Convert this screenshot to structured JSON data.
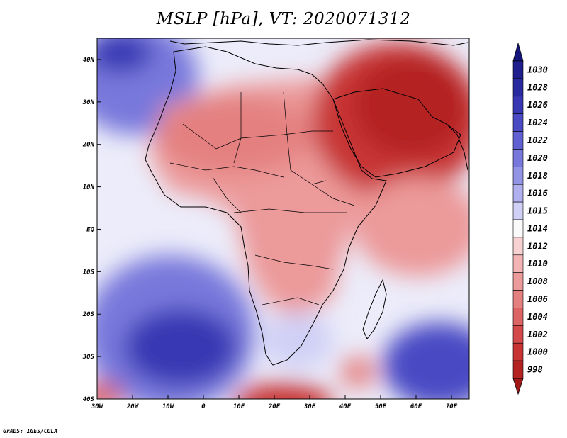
{
  "title": "MSLP [hPa], VT: 2020071312",
  "credit": "GrADS: IGES/COLA",
  "map": {
    "lon_range": [
      -30,
      75
    ],
    "lat_range": [
      -40,
      45
    ],
    "lon_ticks": [
      {
        "value": -30,
        "label": "30W"
      },
      {
        "value": -20,
        "label": "20W"
      },
      {
        "value": -10,
        "label": "10W"
      },
      {
        "value": 0,
        "label": "0"
      },
      {
        "value": 10,
        "label": "10E"
      },
      {
        "value": 20,
        "label": "20E"
      },
      {
        "value": 30,
        "label": "30E"
      },
      {
        "value": 40,
        "label": "40E"
      },
      {
        "value": 50,
        "label": "50E"
      },
      {
        "value": 60,
        "label": "60E"
      },
      {
        "value": 70,
        "label": "70E"
      }
    ],
    "lat_ticks": [
      {
        "value": 40,
        "label": "40N"
      },
      {
        "value": 30,
        "label": "30N"
      },
      {
        "value": 20,
        "label": "20N"
      },
      {
        "value": 10,
        "label": "10N"
      },
      {
        "value": 0,
        "label": "EQ"
      },
      {
        "value": -10,
        "label": "10S"
      },
      {
        "value": -20,
        "label": "20S"
      },
      {
        "value": -30,
        "label": "30S"
      },
      {
        "value": -40,
        "label": "40S"
      }
    ]
  },
  "colorbar": {
    "levels": [
      {
        "label": "1030",
        "color": "#1e1e8c"
      },
      {
        "label": "1028",
        "color": "#2a2aa0"
      },
      {
        "label": "1026",
        "color": "#3838b4"
      },
      {
        "label": "1024",
        "color": "#4a4ac4"
      },
      {
        "label": "1022",
        "color": "#6060d2"
      },
      {
        "label": "1020",
        "color": "#7878dc"
      },
      {
        "label": "1018",
        "color": "#9494e6"
      },
      {
        "label": "1016",
        "color": "#b0b0ee"
      },
      {
        "label": "1015",
        "color": "#d0d0f6"
      },
      {
        "label": "1014",
        "color": "#fafafa"
      },
      {
        "label": "1012",
        "color": "#f8d2d2"
      },
      {
        "label": "1010",
        "color": "#f2b4b4"
      },
      {
        "label": "1008",
        "color": "#ec9a9a"
      },
      {
        "label": "1006",
        "color": "#e48080"
      },
      {
        "label": "1004",
        "color": "#dc6464"
      },
      {
        "label": "1002",
        "color": "#d44a4a"
      },
      {
        "label": "1000",
        "color": "#c83434"
      },
      {
        "label": "998",
        "color": "#b42222"
      }
    ],
    "top_arrow_color": "#14147a",
    "bottom_arrow_color": "#a01818"
  }
}
